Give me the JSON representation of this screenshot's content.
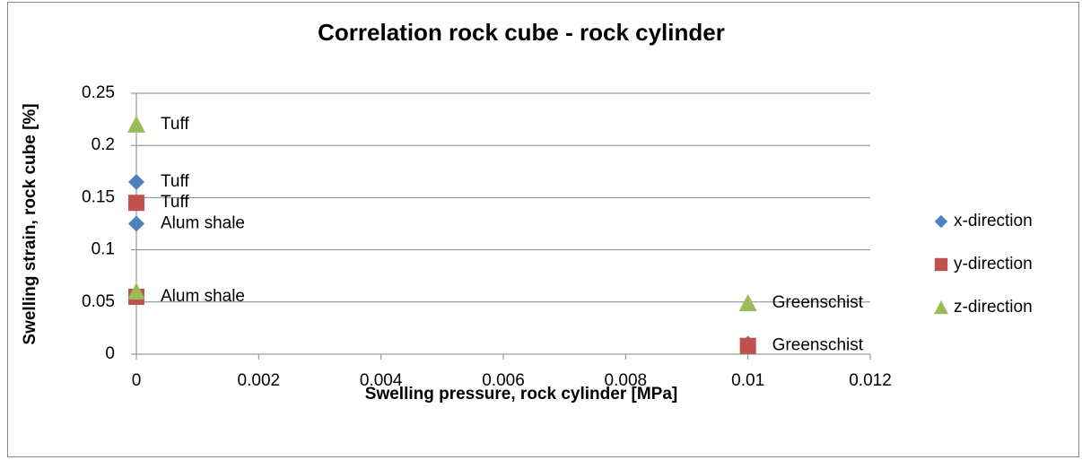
{
  "chart_data": {
    "type": "scatter",
    "title": "Correlation rock cube - rock cylinder",
    "x_label": "Swelling pressure, rock cylinder [MPa]",
    "y_label": "Swelling strain, rock cube [%]",
    "xlim": [
      0,
      0.012
    ],
    "xticks": [
      0,
      0.002,
      0.004,
      0.006,
      0.008,
      0.01,
      0.012
    ],
    "ylim": [
      0,
      0.25
    ],
    "yticks": [
      0,
      0.05,
      0.1,
      0.15,
      0.2,
      0.25
    ],
    "grid": true,
    "legend": "right",
    "series": [
      {
        "name": "x-direction",
        "color": "#4f81bd",
        "marker": "diamond",
        "x": [
          0,
          0,
          0.01
        ],
        "values": [
          0.165,
          0.125,
          0.01
        ],
        "point_labels": [
          "Tuff",
          "Alum shale",
          null
        ]
      },
      {
        "name": "y-direction",
        "color": "#c0504d",
        "marker": "square",
        "x": [
          0,
          0,
          0.01
        ],
        "values": [
          0.145,
          0.055,
          0.008
        ],
        "point_labels": [
          "Tuff",
          "Alum shale",
          "Greenschist"
        ]
      },
      {
        "name": "z-direction",
        "color": "#9bbb59",
        "marker": "triangle",
        "x": [
          0,
          0,
          0.01
        ],
        "values": [
          0.22,
          0.06,
          0.049
        ],
        "point_labels": [
          "Tuff",
          null,
          "Greenschist"
        ]
      }
    ]
  }
}
